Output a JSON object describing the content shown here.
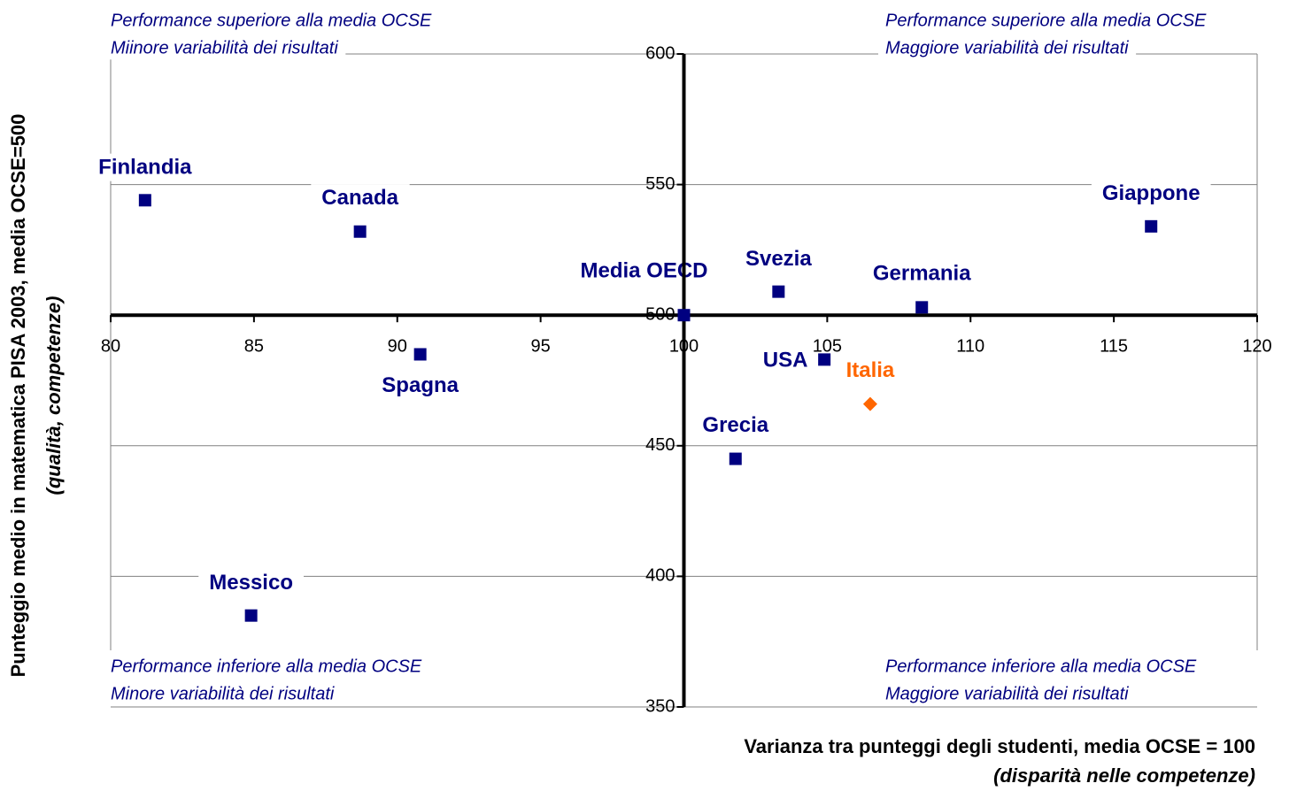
{
  "chart_data": {
    "type": "scatter",
    "x_label": "Varianza tra punteggi degli studenti, media OCSE = 100",
    "x_sublabel": "(disparità nelle competenze)",
    "y_label": "Punteggio medio in matematica PISA 2003, media OCSE=500",
    "y_sublabel": "(qualità, competenze)",
    "annotations": {
      "top_left": [
        "Performance  superiore alla media OCSE",
        "Miinore variabilità dei risultati"
      ],
      "top_right": [
        "Performance  superiore alla media OCSE",
        "Maggiore variabilità dei risultati"
      ],
      "bottom_left": [
        "Performance inferiore alla media OCSE",
        "Minore variabilità dei risultati"
      ],
      "bottom_right": [
        "Performance inferiore alla media OCSE",
        "Maggiore variabilità dei risultati"
      ]
    },
    "xlim": [
      80,
      120
    ],
    "xticks": [
      80,
      85,
      90,
      95,
      100,
      105,
      110,
      115,
      120
    ],
    "ylim": [
      350,
      600
    ],
    "yticks": [
      350,
      400,
      450,
      500,
      550,
      600
    ],
    "x_origin": 100,
    "y_origin": 500,
    "points": [
      {
        "label": "Finlandia",
        "x": 81.2,
        "y": 544,
        "color": "#000080",
        "marker": "square"
      },
      {
        "label": "Canada",
        "x": 88.7,
        "y": 532,
        "color": "#000080",
        "marker": "square"
      },
      {
        "label": "Media OECD",
        "x": 100,
        "y": 500,
        "color": "#000080",
        "marker": "square"
      },
      {
        "label": "Svezia",
        "x": 103.3,
        "y": 509,
        "color": "#000080",
        "marker": "square"
      },
      {
        "label": "Germania",
        "x": 108.3,
        "y": 503,
        "color": "#000080",
        "marker": "square"
      },
      {
        "label": "Giappone",
        "x": 116.3,
        "y": 534,
        "color": "#000080",
        "marker": "square"
      },
      {
        "label": "Spagna",
        "x": 90.8,
        "y": 485,
        "color": "#000080",
        "marker": "square"
      },
      {
        "label": "USA",
        "x": 104.9,
        "y": 483,
        "color": "#000080",
        "marker": "square"
      },
      {
        "label": "Italia",
        "x": 106.5,
        "y": 466,
        "color": "#ff6600",
        "marker": "diamond"
      },
      {
        "label": "Grecia",
        "x": 101.8,
        "y": 445,
        "color": "#000080",
        "marker": "square"
      },
      {
        "label": "Messico",
        "x": 84.9,
        "y": 385,
        "color": "#000080",
        "marker": "square"
      }
    ]
  }
}
